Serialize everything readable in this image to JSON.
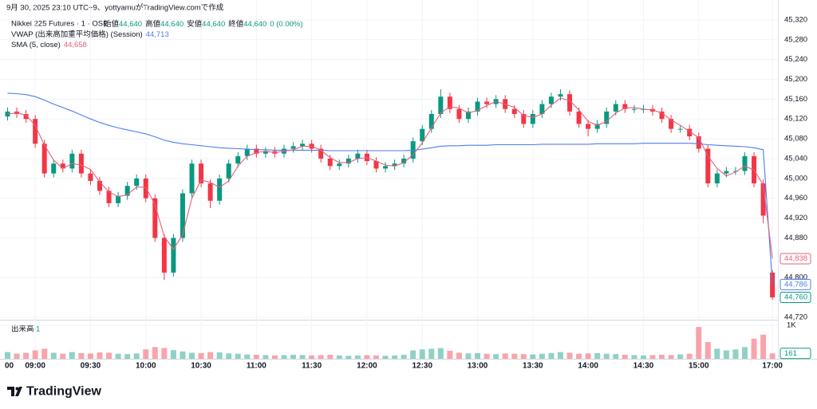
{
  "header": {
    "credit": "9月 30, 2025 23:10 UTC+9、yottyamuがTradingView.comで作成"
  },
  "branding": "TradingView",
  "chart_data": {
    "type": "candlestick",
    "title": "Nikkei 225 Futures · 1 · OSE",
    "legend_ohlc": [
      {
        "label": "始値",
        "value": "44,640"
      },
      {
        "label": "高値",
        "value": "44,640"
      },
      {
        "label": "安値",
        "value": "44,640"
      },
      {
        "label": "終値",
        "value": "44,640"
      }
    ],
    "legend_change": "0 (0.00%)",
    "up_color": "#089981",
    "down_color": "#f23645",
    "x_edge_label": "00",
    "categories": [
      null,
      null,
      null,
      "09:00",
      null,
      null,
      null,
      null,
      null,
      "09:30",
      null,
      null,
      null,
      null,
      null,
      "10:00",
      null,
      null,
      null,
      null,
      null,
      "10:30",
      null,
      null,
      null,
      null,
      null,
      "11:00",
      null,
      null,
      null,
      null,
      null,
      "11:30",
      null,
      null,
      null,
      null,
      null,
      "12:00",
      null,
      null,
      null,
      null,
      null,
      "12:30",
      null,
      null,
      null,
      null,
      null,
      "13:00",
      null,
      null,
      null,
      null,
      null,
      "13:30",
      null,
      null,
      null,
      null,
      null,
      "14:00",
      null,
      null,
      null,
      null,
      null,
      "14:30",
      null,
      null,
      null,
      null,
      null,
      "15:00",
      null,
      null,
      null,
      null,
      null,
      null,
      null,
      "17:00"
    ],
    "open": [
      45125,
      45135,
      45130,
      45120,
      45070,
      45010,
      45030,
      45020,
      45050,
      45010,
      44995,
      44975,
      44950,
      44965,
      44985,
      45000,
      44960,
      44880,
      44810,
      44880,
      44970,
      45030,
      44990,
      44955,
      45000,
      45030,
      45045,
      45060,
      45050,
      45055,
      45050,
      45060,
      45065,
      45070,
      45060,
      45040,
      45025,
      45030,
      45040,
      45050,
      45035,
      45020,
      45025,
      45030,
      45040,
      45075,
      45100,
      45130,
      45165,
      45140,
      45120,
      45135,
      45155,
      45150,
      45160,
      45140,
      45130,
      45110,
      45130,
      45150,
      45165,
      45170,
      45135,
      45110,
      45100,
      45110,
      45135,
      45150,
      45140,
      45140,
      45140,
      45135,
      45120,
      45100,
      45100,
      45085,
      45060,
      44990,
      45010,
      45015,
      45015,
      45045,
      44990,
      44810
    ],
    "high": [
      45143,
      45143,
      45138,
      45128,
      45078,
      45038,
      45038,
      45058,
      45058,
      45018,
      45003,
      44983,
      44973,
      44993,
      45008,
      45008,
      44968,
      44888,
      44888,
      44978,
      45038,
      45038,
      44998,
      45008,
      45038,
      45053,
      45068,
      45068,
      45063,
      45063,
      45068,
      45073,
      45078,
      45078,
      45068,
      45048,
      45038,
      45048,
      45058,
      45058,
      45043,
      45033,
      45038,
      45048,
      45083,
      45108,
      45138,
      45180,
      45173,
      45148,
      45143,
      45163,
      45163,
      45168,
      45168,
      45148,
      45138,
      45138,
      45158,
      45173,
      45180,
      45178,
      45143,
      45118,
      45118,
      45143,
      45158,
      45158,
      45148,
      45148,
      45148,
      45143,
      45128,
      45108,
      45108,
      45093,
      45068,
      45018,
      45023,
      45023,
      45053,
      45053,
      44998,
      44815
    ],
    "low": [
      45117,
      45122,
      45112,
      45062,
      45002,
      45002,
      45012,
      45012,
      45002,
      44987,
      44967,
      44942,
      44942,
      44957,
      44977,
      44952,
      44872,
      44795,
      44802,
      44872,
      44962,
      44982,
      44940,
      44947,
      44992,
      45022,
      45037,
      45042,
      45042,
      45042,
      45042,
      45052,
      45057,
      45052,
      45032,
      45017,
      45017,
      45022,
      45032,
      45027,
      45012,
      45012,
      45017,
      45022,
      45032,
      45067,
      45092,
      45122,
      45132,
      45112,
      45112,
      45127,
      45142,
      45142,
      45132,
      45122,
      45102,
      45102,
      45122,
      45142,
      45157,
      45127,
      45102,
      45085,
      45092,
      45102,
      45127,
      45132,
      45132,
      45132,
      45127,
      45112,
      45092,
      45092,
      45077,
      45052,
      44982,
      44982,
      45002,
      45007,
      45007,
      44982,
      44910,
      44755
    ],
    "close": [
      45135,
      45130,
      45120,
      45070,
      45010,
      45030,
      45020,
      45050,
      45010,
      44995,
      44975,
      44950,
      44965,
      44985,
      45000,
      44960,
      44880,
      44810,
      44880,
      44970,
      45030,
      44990,
      44955,
      45000,
      45030,
      45045,
      45060,
      45050,
      45055,
      45050,
      45060,
      45065,
      45070,
      45060,
      45040,
      45025,
      45030,
      45040,
      45050,
      45035,
      45020,
      45025,
      45030,
      45040,
      45075,
      45100,
      45130,
      45165,
      45140,
      45120,
      45135,
      45155,
      45150,
      45160,
      45140,
      45130,
      45110,
      45130,
      45150,
      45165,
      45170,
      45135,
      45110,
      45100,
      45110,
      45135,
      45150,
      45140,
      45140,
      45140,
      45135,
      45120,
      45100,
      45100,
      45085,
      45060,
      44990,
      45010,
      45015,
      45015,
      45045,
      44990,
      44925,
      44760
    ],
    "close_last_label": "44,760",
    "series": [
      {
        "name": "VWAP (出来高加重平均価格) (Session)",
        "color": "#4f7cf0",
        "legend_value": "44,713",
        "last_label": "44,786",
        "values": [
          45172,
          45171,
          45169,
          45165,
          45158,
          45150,
          45143,
          45136,
          45128,
          45120,
          45113,
          45107,
          45102,
          45098,
          45094,
          45090,
          45084,
          45077,
          45073,
          45070,
          45068,
          45066,
          45064,
          45062,
          45061,
          45060,
          45059,
          45058,
          45058,
          45057,
          45057,
          45057,
          45057,
          45057,
          45057,
          45056,
          45056,
          45056,
          45056,
          45056,
          45056,
          45056,
          45056,
          45056,
          45057,
          45059,
          45062,
          45065,
          45066,
          45066,
          45067,
          45067,
          45067,
          45068,
          45068,
          45068,
          45068,
          45068,
          45069,
          45069,
          45069,
          45069,
          45069,
          45069,
          45070,
          45070,
          45070,
          45070,
          45070,
          45071,
          45071,
          45071,
          45071,
          45071,
          45071,
          45070,
          45068,
          45067,
          45066,
          45065,
          45064,
          45062,
          45058,
          44786
        ]
      },
      {
        "name": "SMA (5, close)",
        "color": "#e5607a",
        "legend_value": "44,658",
        "last_label": "44,838",
        "values": [
          45130,
          45132,
          45128,
          45107,
          45067,
          45037,
          45020,
          45030,
          45027,
          45018,
          44993,
          44973,
          44963,
          44967,
          44983,
          44982,
          44947,
          44883,
          44857,
          44887,
          44960,
          44997,
          44992,
          44982,
          44995,
          45025,
          45045,
          45052,
          45055,
          45052,
          45055,
          45058,
          45065,
          45065,
          45057,
          45042,
          45032,
          45032,
          45040,
          45042,
          45035,
          45027,
          45025,
          45032,
          45048,
          45072,
          45102,
          45132,
          45145,
          45142,
          45132,
          45137,
          45147,
          45155,
          45150,
          45143,
          45127,
          45123,
          45130,
          45148,
          45162,
          45157,
          45138,
          45115,
          45107,
          45115,
          45132,
          45142,
          45143,
          45140,
          45138,
          45132,
          45118,
          45107,
          45095,
          45082,
          45045,
          45020,
          45005,
          45013,
          45025,
          45017,
          44987,
          44838
        ]
      }
    ],
    "ylim": [
      44715,
      45360
    ],
    "yticks": [
      {
        "value": 45320,
        "label": "45,320"
      },
      {
        "value": 45280,
        "label": "45,280"
      },
      {
        "value": 45240,
        "label": "45,240"
      },
      {
        "value": 45200,
        "label": "45,200"
      },
      {
        "value": 45160,
        "label": "45,160"
      },
      {
        "value": 45120,
        "label": "45,120"
      },
      {
        "value": 45080,
        "label": "45,080"
      },
      {
        "value": 45040,
        "label": "45,040"
      },
      {
        "value": 45000,
        "label": "45,000"
      },
      {
        "value": 44960,
        "label": "44,960"
      },
      {
        "value": 44920,
        "label": "44,920"
      },
      {
        "value": 44880,
        "label": "44,880"
      },
      {
        "value": 44800,
        "label": "44,800"
      },
      {
        "value": 44720,
        "label": "44,720"
      }
    ],
    "grid": true,
    "volume": {
      "name": "出来高",
      "legend_value": 1,
      "last_label": "161",
      "values": [
        200,
        150,
        180,
        250,
        300,
        180,
        150,
        200,
        170,
        160,
        190,
        180,
        150,
        140,
        160,
        280,
        350,
        320,
        260,
        220,
        180,
        170,
        200,
        190,
        160,
        150,
        130,
        120,
        110,
        100,
        110,
        120,
        110,
        100,
        110,
        120,
        100,
        90,
        100,
        110,
        100,
        90,
        100,
        120,
        250,
        280,
        300,
        320,
        240,
        180,
        160,
        170,
        150,
        140,
        160,
        150,
        140,
        130,
        150,
        170,
        200,
        180,
        150,
        160,
        170,
        150,
        140,
        120,
        110,
        100,
        110,
        120,
        110,
        130,
        150,
        950,
        500,
        300,
        250,
        280,
        350,
        600,
        720,
        161
      ],
      "ylim": [
        0,
        1120
      ],
      "yticks": [
        {
          "value": 1000,
          "label": "1K"
        }
      ]
    }
  }
}
